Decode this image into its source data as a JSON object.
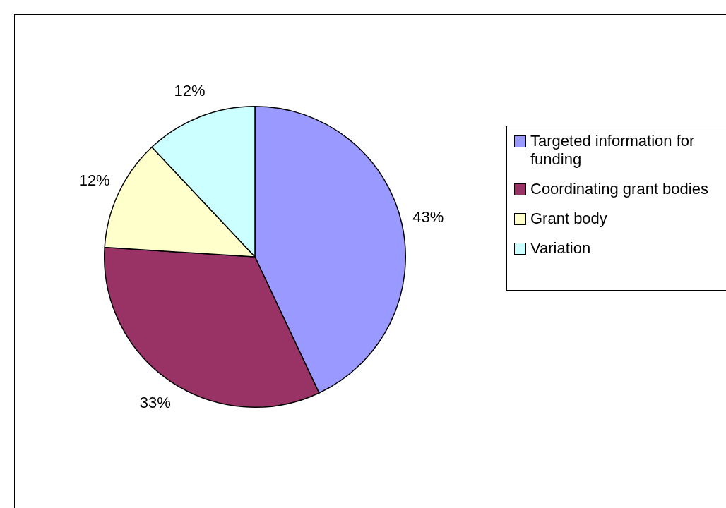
{
  "chart_data": {
    "type": "pie",
    "categories": [
      "Targeted information for funding",
      "Coordinating grant bodies",
      "Grant body",
      "Variation"
    ],
    "values": [
      43,
      33,
      12,
      12
    ],
    "colors": [
      "#9999ff",
      "#993366",
      "#ffffcc",
      "#ccffff"
    ],
    "value_labels": [
      "43%",
      "33%",
      "12%",
      "12%"
    ],
    "legend": "right"
  }
}
